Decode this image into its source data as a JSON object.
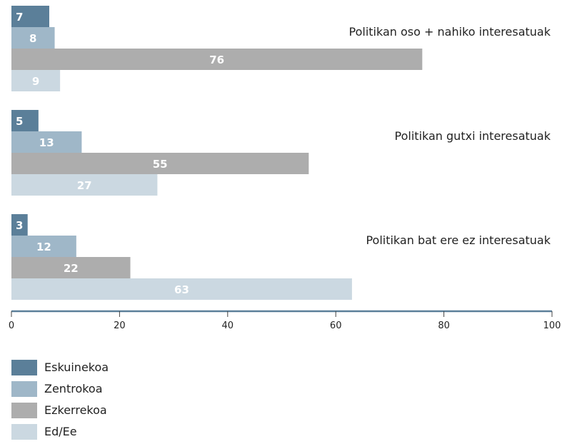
{
  "chart_data": {
    "type": "bar",
    "orientation": "horizontal",
    "xlim": [
      0,
      100
    ],
    "xticks": [
      0,
      20,
      40,
      60,
      80,
      100
    ],
    "groups": [
      "Politikan oso + nahiko interesatuak",
      "Politikan gutxi interesatuak",
      "Politikan bat ere ez interesatuak"
    ],
    "series": [
      {
        "name": "Eskuinekoa",
        "color": "#5b7f99",
        "values": [
          7,
          5,
          3
        ]
      },
      {
        "name": "Zentrokoa",
        "color": "#9fb7c8",
        "values": [
          8,
          13,
          12
        ]
      },
      {
        "name": "Ezkerrekoa",
        "color": "#adadad",
        "values": [
          76,
          55,
          22
        ]
      },
      {
        "name": "Ed/Ee",
        "color": "#cbd8e1",
        "values": [
          9,
          27,
          63
        ]
      }
    ],
    "axis_color": "#5b7f99",
    "legend_position": "bottom-left",
    "grid": false
  }
}
